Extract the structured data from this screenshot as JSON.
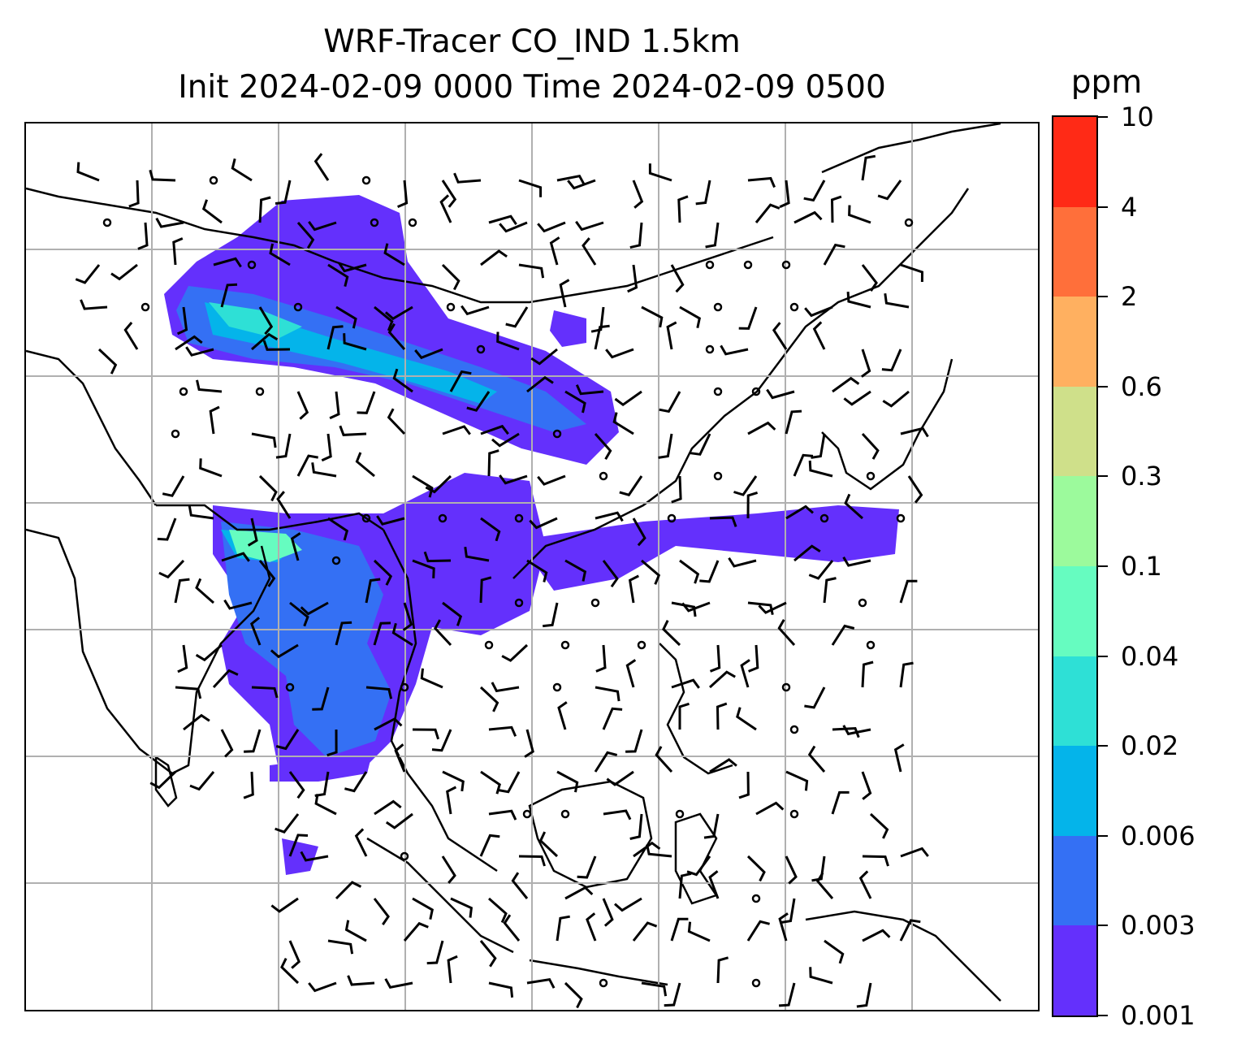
{
  "title": {
    "line1": "WRF-Tracer CO_IND 1.5km",
    "line2": "Init 2024-02-09 0000 Time 2024-02-09 0500"
  },
  "colorbar": {
    "unit": "ppm",
    "ticks": [
      "10",
      "4",
      "2",
      "0.6",
      "0.3",
      "0.1",
      "0.04",
      "0.02",
      "0.006",
      "0.003",
      "0.001"
    ],
    "colors_top_to_bottom": [
      "#ff2a16",
      "#ff6f3a",
      "#ffb060",
      "#cfe08a",
      "#9cfa9c",
      "#66fcc0",
      "#2ee0d6",
      "#04b4ea",
      "#3470f4",
      "#6430fc"
    ]
  },
  "map": {
    "gridlines": "on",
    "gridline_color": "#b0b0b0",
    "coastline_color": "#000000",
    "wind_barb_color": "#000000",
    "calm_marker": "circle",
    "field": "CO_IND tracer concentration",
    "plume_regions": [
      {
        "name": "northern-plume",
        "dominant_range": "0.001-0.02"
      },
      {
        "name": "southern-plume",
        "dominant_range": "0.001-0.1"
      },
      {
        "name": "eastern-plume",
        "dominant_range": "0.001-0.003"
      }
    ]
  }
}
